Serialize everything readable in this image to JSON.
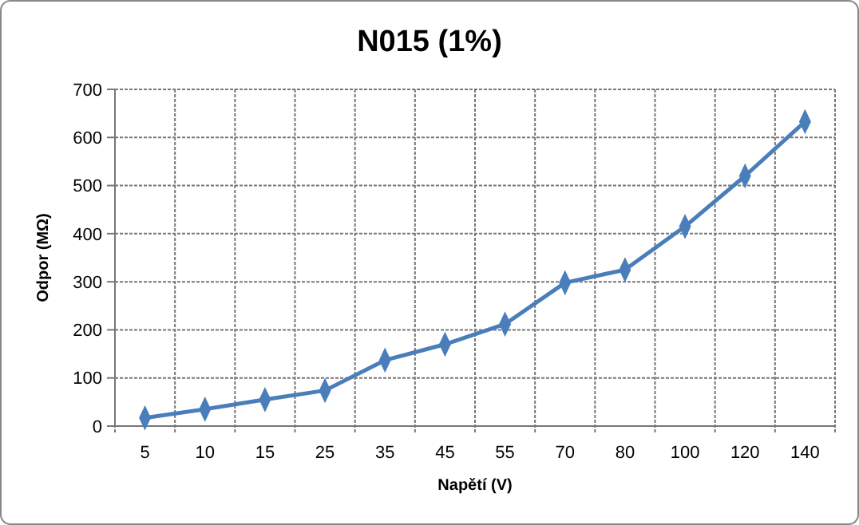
{
  "chart_data": {
    "type": "line",
    "title": "N015 (1%)",
    "xlabel": "Napětí (V)",
    "ylabel": "Odpor (MΩ)",
    "categories": [
      "5",
      "10",
      "15",
      "25",
      "35",
      "45",
      "55",
      "70",
      "80",
      "100",
      "120",
      "140"
    ],
    "series": [
      {
        "color": "#4a7ebb",
        "values": [
          17,
          35,
          55,
          74,
          137,
          170,
          212,
          298,
          325,
          415,
          520,
          633
        ]
      }
    ],
    "ylim": [
      0,
      700
    ],
    "yticks": [
      0,
      100,
      200,
      300,
      400,
      500,
      600,
      700
    ],
    "grid": true,
    "marker": "diamond",
    "line_style": "solid"
  }
}
